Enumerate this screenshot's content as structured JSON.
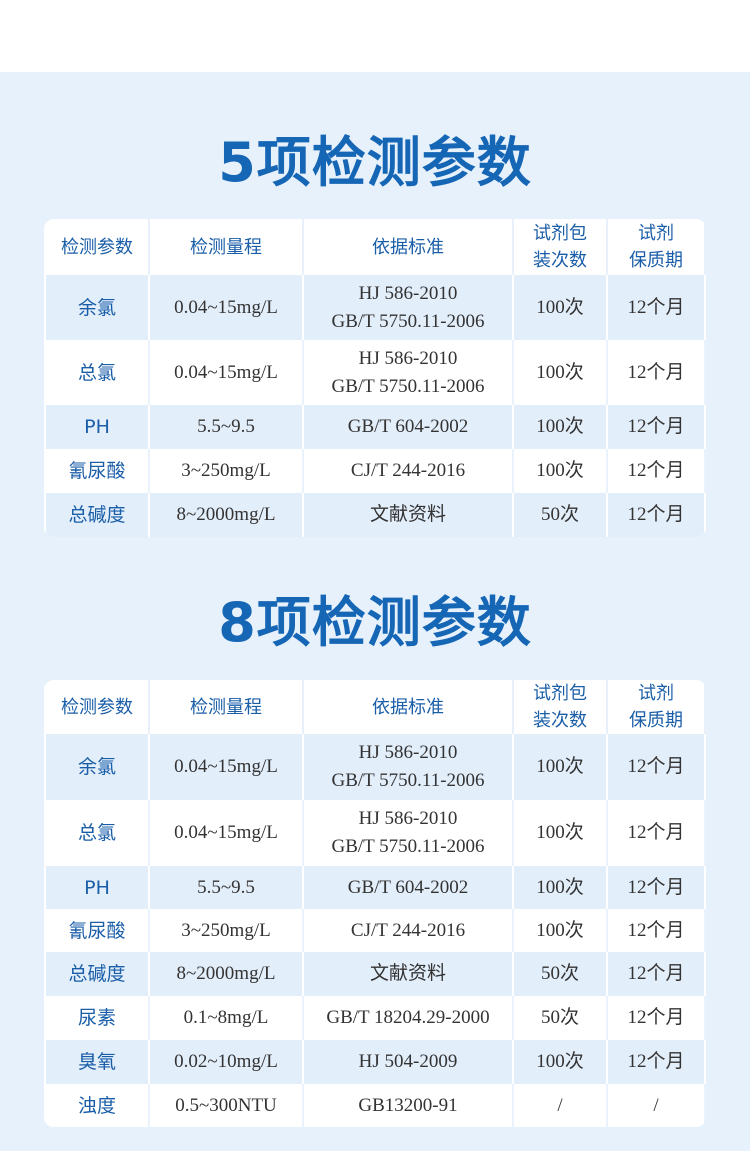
{
  "headers": [
    "检测参数",
    "检测量程",
    "依据标准",
    "试剂包\n装次数",
    "试剂\n保质期"
  ],
  "sections": [
    {
      "title": "5项检测参数",
      "rows": [
        [
          "余氯",
          "0.04~15mg/L",
          "HJ 586-2010\nGB/T 5750.11-2006",
          "100次",
          "12个月"
        ],
        [
          "总氯",
          "0.04~15mg/L",
          "HJ 586-2010\nGB/T 5750.11-2006",
          "100次",
          "12个月"
        ],
        [
          "PH",
          "5.5~9.5",
          "GB/T 604-2002",
          "100次",
          "12个月"
        ],
        [
          "氰尿酸",
          "3~250mg/L",
          "CJ/T 244-2016",
          "100次",
          "12个月"
        ],
        [
          "总碱度",
          "8~2000mg/L",
          "文献资料",
          "50次",
          "12个月"
        ]
      ]
    },
    {
      "title": "8项检测参数",
      "rows": [
        [
          "余氯",
          "0.04~15mg/L",
          "HJ 586-2010\nGB/T 5750.11-2006",
          "100次",
          "12个月"
        ],
        [
          "总氯",
          "0.04~15mg/L",
          "HJ 586-2010\nGB/T 5750.11-2006",
          "100次",
          "12个月"
        ],
        [
          "PH",
          "5.5~9.5",
          "GB/T 604-2002",
          "100次",
          "12个月"
        ],
        [
          "氰尿酸",
          "3~250mg/L",
          "CJ/T 244-2016",
          "100次",
          "12个月"
        ],
        [
          "总碱度",
          "8~2000mg/L",
          "文献资料",
          "50次",
          "12个月"
        ],
        [
          "尿素",
          "0.1~8mg/L",
          "GB/T 18204.29-2000",
          "50次",
          "12个月"
        ],
        [
          "臭氧",
          "0.02~10mg/L",
          "HJ 504-2009",
          "100次",
          "12个月"
        ],
        [
          "浊度",
          "0.5~300NTU",
          "GB13200-91",
          "/",
          "/"
        ]
      ]
    }
  ],
  "colors": {
    "accent": "#1666b6",
    "background": "#e7f1fb",
    "row_alt": "#e3eefb"
  }
}
